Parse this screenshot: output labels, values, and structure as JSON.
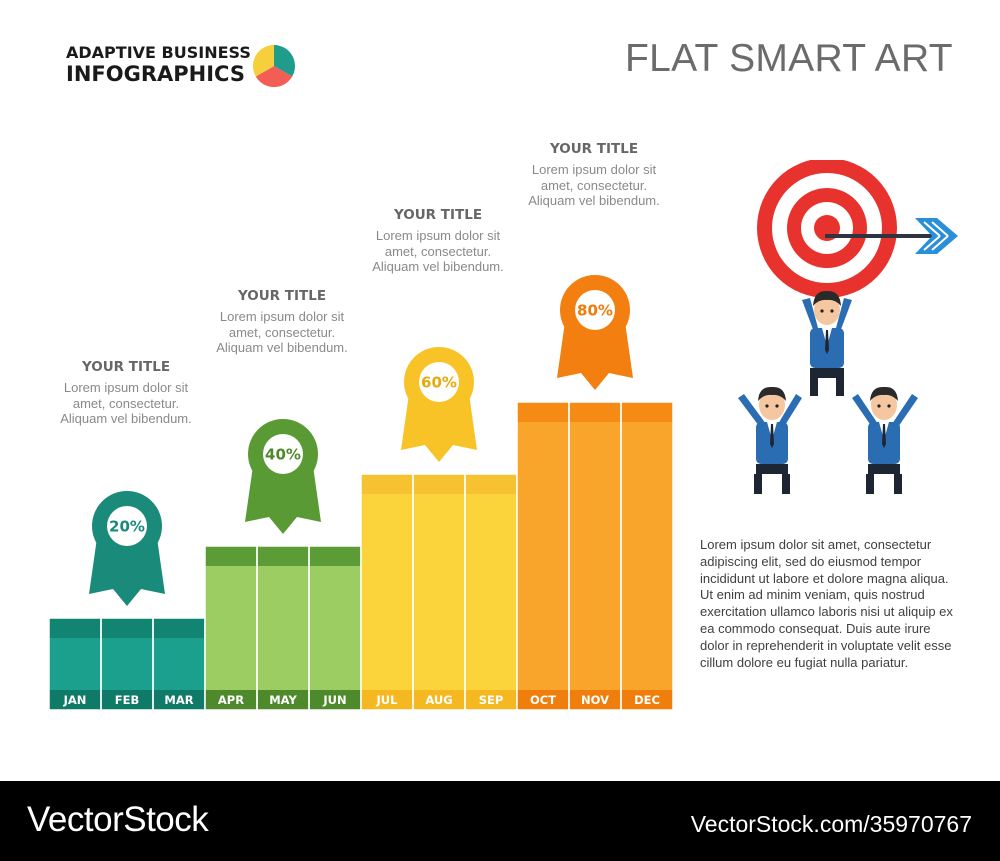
{
  "header": {
    "brand_line1": "ADAPTIVE BUSINESS",
    "brand_line2": "INFOGRAPHICS",
    "title": "FLAT SMART ART",
    "logo_colors": [
      "#1f9c8c",
      "#f25e53",
      "#f6d03c"
    ]
  },
  "chart_data": {
    "type": "bar",
    "categories": [
      "JAN",
      "FEB",
      "MAR",
      "APR",
      "MAY",
      "JUN",
      "JUL",
      "AUG",
      "SEP",
      "OCT",
      "NOV",
      "DEC"
    ],
    "values": [
      20,
      20,
      20,
      40,
      40,
      40,
      60,
      60,
      60,
      80,
      80,
      80
    ],
    "groups": [
      {
        "months": [
          0,
          1,
          2
        ],
        "value": 20,
        "label": "20%",
        "color": "#1aa08c",
        "cap_color": "#128472",
        "label_bar_color": "#0f7a68",
        "marker_color": "#1a8a7a",
        "text_color": "#1a8a7a"
      },
      {
        "months": [
          3,
          4,
          5
        ],
        "value": 40,
        "label": "40%",
        "color": "#9ccd62",
        "cap_color": "#5c9c36",
        "label_bar_color": "#4e8a2c",
        "marker_color": "#5a9a35",
        "text_color": "#4e8a2c"
      },
      {
        "months": [
          6,
          7,
          8
        ],
        "value": 60,
        "label": "60%",
        "color": "#fad43a",
        "cap_color": "#f7c232",
        "label_bar_color": "#f5b820",
        "marker_color": "#f8c327",
        "text_color": "#e8a90c"
      },
      {
        "months": [
          9,
          10,
          11
        ],
        "value": 80,
        "label": "80%",
        "color": "#f9a42a",
        "cap_color": "#f58a15",
        "label_bar_color": "#f07e0c",
        "marker_color": "#f27f10",
        "text_color": "#ee7b0c"
      }
    ],
    "ylim": [
      0,
      100
    ],
    "grid": false
  },
  "annotations": [
    {
      "title": "YOUR TITLE",
      "body": "Lorem ipsum dolor sit amet, consectetur. Aliquam vel bibendum."
    },
    {
      "title": "YOUR TITLE",
      "body": "Lorem ipsum dolor sit amet, consectetur. Aliquam vel bibendum."
    },
    {
      "title": "YOUR TITLE",
      "body": "Lorem ipsum dolor sit amet, consectetur. Aliquam vel bibendum."
    },
    {
      "title": "YOUR TITLE",
      "body": "Lorem ipsum dolor sit amet, consectetur. Aliquam vel bibendum."
    }
  ],
  "side_text": "Lorem ipsum dolor sit amet, consectetur adipiscing elit, sed do eiusmod tempor incididunt ut labore et dolore magna aliqua. Ut enim ad minim veniam, quis nostrud exercitation ullamco laboris nisi ut aliquip ex ea commodo consequat. Duis aute irure dolor in reprehenderit in voluptate velit esse cillum dolore eu fugiat nulla pariatur.",
  "illustration": {
    "icon": "target-teamwork-icon",
    "target_colors": [
      "#e8322d",
      "#ffffff"
    ],
    "arrow_color": "#2a8fd8",
    "suit_color": "#2b6db3"
  },
  "footer": {
    "left": "VectorStock",
    "right": "VectorStock.com/35970767"
  }
}
